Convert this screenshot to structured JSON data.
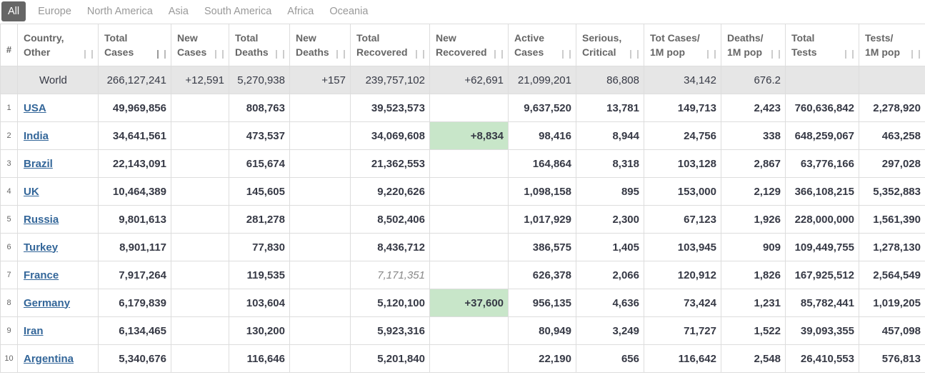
{
  "tabs": [
    "All",
    "Europe",
    "North America",
    "Asia",
    "South America",
    "Africa",
    "Oceania"
  ],
  "headers": {
    "hash": "#",
    "country": [
      "Country,",
      "Other"
    ],
    "total_cases": [
      "Total",
      "Cases"
    ],
    "new_cases": [
      "New",
      "Cases"
    ],
    "total_deaths": [
      "Total",
      "Deaths"
    ],
    "new_deaths": [
      "New",
      "Deaths"
    ],
    "total_recovered": [
      "Total",
      "Recovered"
    ],
    "new_recovered": [
      "New",
      "Recovered"
    ],
    "active_cases": [
      "Active",
      "Cases"
    ],
    "serious_critical": [
      "Serious,",
      "Critical"
    ],
    "tot_cases_1m": [
      "Tot Cases/",
      "1M pop"
    ],
    "deaths_1m": [
      "Deaths/",
      "1M pop"
    ],
    "total_tests": [
      "Total",
      "Tests"
    ],
    "tests_1m": [
      "Tests/",
      "1M pop"
    ]
  },
  "world": {
    "country": "World",
    "total_cases": "266,127,241",
    "new_cases": "+12,591",
    "total_deaths": "5,270,938",
    "new_deaths": "+157",
    "total_recovered": "239,757,102",
    "new_recovered": "+62,691",
    "active_cases": "21,099,201",
    "serious_critical": "86,808",
    "tot_cases_1m": "34,142",
    "deaths_1m": "676.2",
    "total_tests": "",
    "tests_1m": ""
  },
  "rows": [
    {
      "rank": "1",
      "country": "USA",
      "total_cases": "49,969,856",
      "new_cases": "",
      "total_deaths": "808,763",
      "new_deaths": "",
      "total_recovered": "39,523,573",
      "new_recovered": "",
      "active_cases": "9,637,520",
      "serious_critical": "13,781",
      "tot_cases_1m": "149,713",
      "deaths_1m": "2,423",
      "total_tests": "760,636,842",
      "tests_1m": "2,278,920"
    },
    {
      "rank": "2",
      "country": "India",
      "total_cases": "34,641,561",
      "new_cases": "",
      "total_deaths": "473,537",
      "new_deaths": "",
      "total_recovered": "34,069,608",
      "new_recovered": "+8,834",
      "active_cases": "98,416",
      "serious_critical": "8,944",
      "tot_cases_1m": "24,756",
      "deaths_1m": "338",
      "total_tests": "648,259,067",
      "tests_1m": "463,258"
    },
    {
      "rank": "3",
      "country": "Brazil",
      "total_cases": "22,143,091",
      "new_cases": "",
      "total_deaths": "615,674",
      "new_deaths": "",
      "total_recovered": "21,362,553",
      "new_recovered": "",
      "active_cases": "164,864",
      "serious_critical": "8,318",
      "tot_cases_1m": "103,128",
      "deaths_1m": "2,867",
      "total_tests": "63,776,166",
      "tests_1m": "297,028"
    },
    {
      "rank": "4",
      "country": "UK",
      "total_cases": "10,464,389",
      "new_cases": "",
      "total_deaths": "145,605",
      "new_deaths": "",
      "total_recovered": "9,220,626",
      "new_recovered": "",
      "active_cases": "1,098,158",
      "serious_critical": "895",
      "tot_cases_1m": "153,000",
      "deaths_1m": "2,129",
      "total_tests": "366,108,215",
      "tests_1m": "5,352,883"
    },
    {
      "rank": "5",
      "country": "Russia",
      "total_cases": "9,801,613",
      "new_cases": "",
      "total_deaths": "281,278",
      "new_deaths": "",
      "total_recovered": "8,502,406",
      "new_recovered": "",
      "active_cases": "1,017,929",
      "serious_critical": "2,300",
      "tot_cases_1m": "67,123",
      "deaths_1m": "1,926",
      "total_tests": "228,000,000",
      "tests_1m": "1,561,390"
    },
    {
      "rank": "6",
      "country": "Turkey",
      "total_cases": "8,901,117",
      "new_cases": "",
      "total_deaths": "77,830",
      "new_deaths": "",
      "total_recovered": "8,436,712",
      "new_recovered": "",
      "active_cases": "386,575",
      "serious_critical": "1,405",
      "tot_cases_1m": "103,945",
      "deaths_1m": "909",
      "total_tests": "109,449,755",
      "tests_1m": "1,278,130"
    },
    {
      "rank": "7",
      "country": "France",
      "total_cases": "7,917,264",
      "new_cases": "",
      "total_deaths": "119,535",
      "new_deaths": "",
      "total_recovered": "7,171,351",
      "new_recovered": "",
      "active_cases": "626,378",
      "serious_critical": "2,066",
      "tot_cases_1m": "120,912",
      "deaths_1m": "1,826",
      "total_tests": "167,925,512",
      "tests_1m": "2,564,549"
    },
    {
      "rank": "8",
      "country": "Germany",
      "total_cases": "6,179,839",
      "new_cases": "",
      "total_deaths": "103,604",
      "new_deaths": "",
      "total_recovered": "5,120,100",
      "new_recovered": "+37,600",
      "active_cases": "956,135",
      "serious_critical": "4,636",
      "tot_cases_1m": "73,424",
      "deaths_1m": "1,231",
      "total_tests": "85,782,441",
      "tests_1m": "1,019,205"
    },
    {
      "rank": "9",
      "country": "Iran",
      "total_cases": "6,134,465",
      "new_cases": "",
      "total_deaths": "130,200",
      "new_deaths": "",
      "total_recovered": "5,923,316",
      "new_recovered": "",
      "active_cases": "80,949",
      "serious_critical": "3,249",
      "tot_cases_1m": "71,727",
      "deaths_1m": "1,522",
      "total_tests": "39,093,355",
      "tests_1m": "457,098"
    },
    {
      "rank": "10",
      "country": "Argentina",
      "total_cases": "5,340,676",
      "new_cases": "",
      "total_deaths": "116,646",
      "new_deaths": "",
      "total_recovered": "5,201,840",
      "new_recovered": "",
      "active_cases": "22,190",
      "serious_critical": "656",
      "tot_cases_1m": "116,642",
      "deaths_1m": "2,548",
      "total_tests": "26,410,553",
      "tests_1m": "576,813"
    }
  ]
}
